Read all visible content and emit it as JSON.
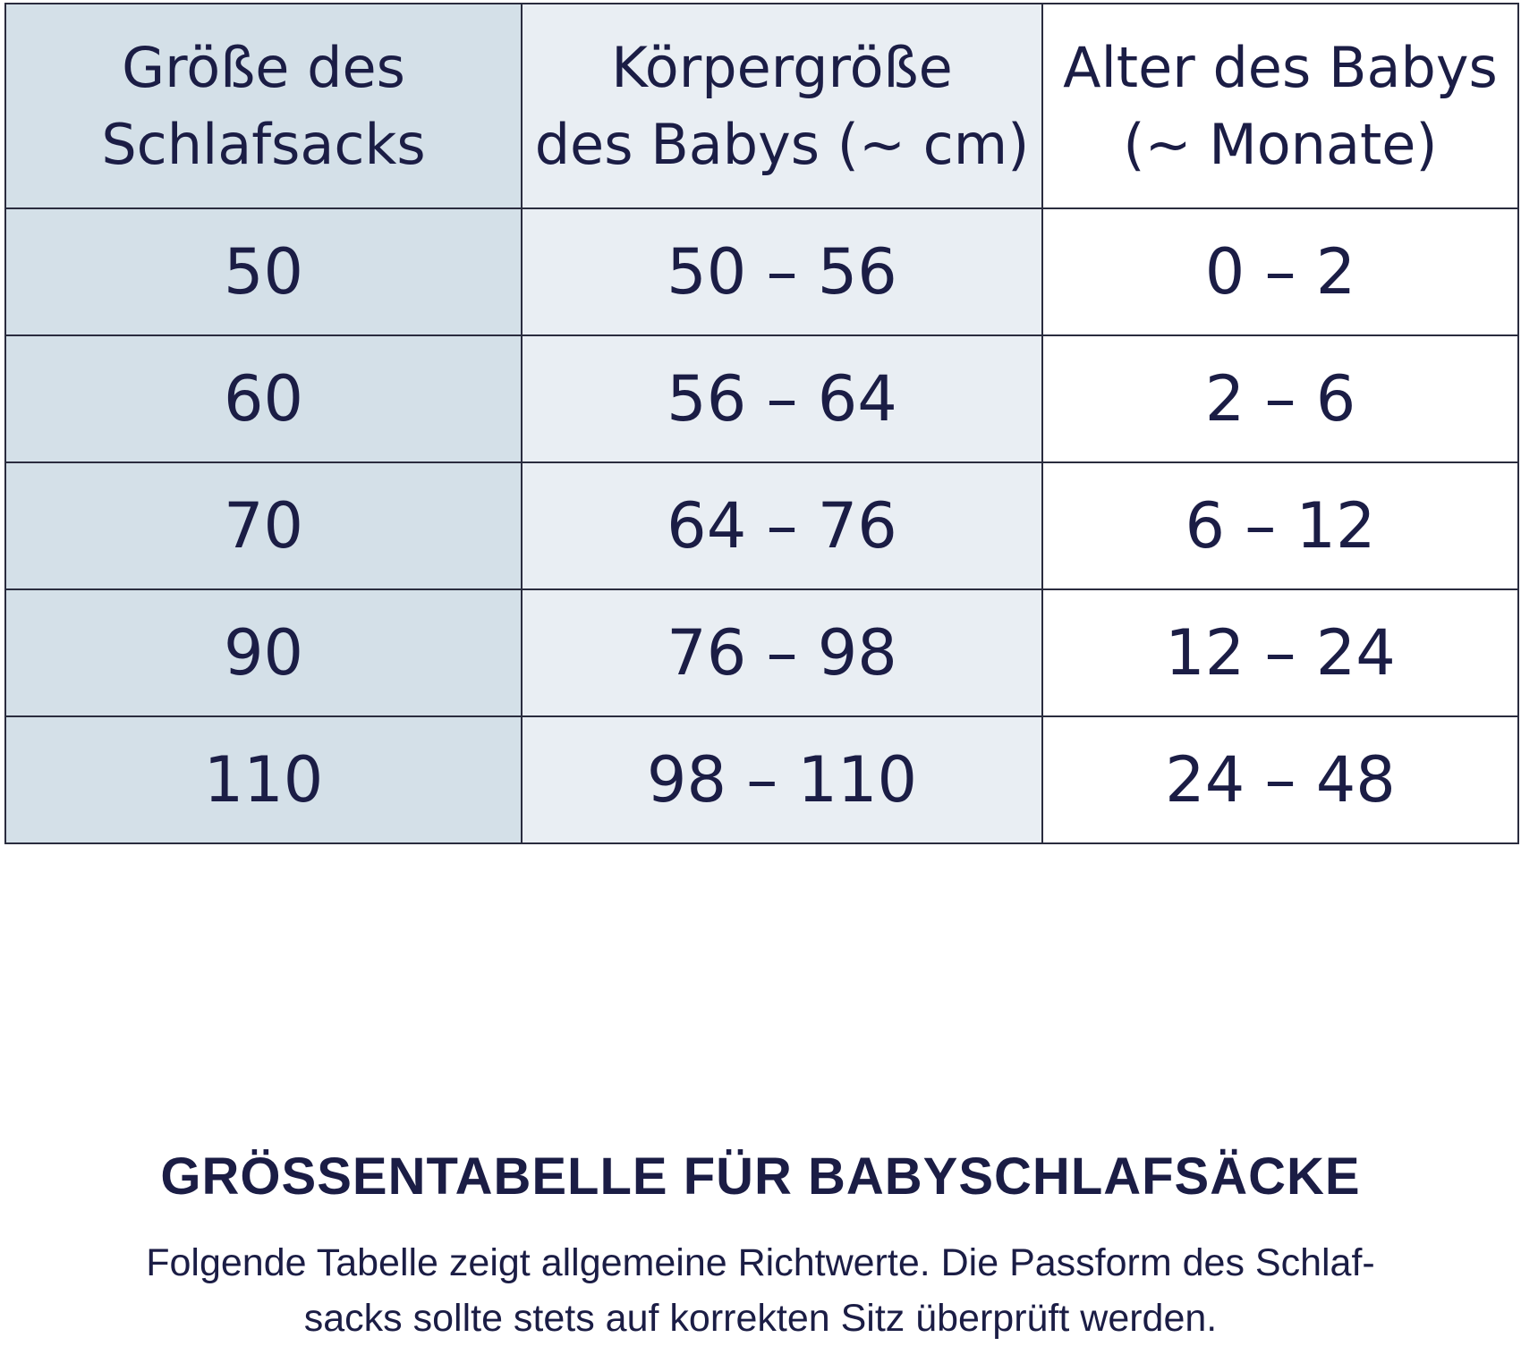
{
  "table": {
    "headers": [
      {
        "line1": "Größe des",
        "line2": "Schlafsacks"
      },
      {
        "line1": "Körpergröße",
        "line2": "des Babys (~ cm)"
      },
      {
        "line1": "Alter des Babys",
        "line2": "(~ Monate)"
      }
    ],
    "rows": [
      {
        "size": "50",
        "height": "50 – 56",
        "age": "0 – 2"
      },
      {
        "size": "60",
        "height": "56 – 64",
        "age": "2 – 6"
      },
      {
        "size": "70",
        "height": "64 – 76",
        "age": "6 – 12"
      },
      {
        "size": "90",
        "height": "76 – 98",
        "age": "12 – 24"
      },
      {
        "size": "110",
        "height": "98 – 110",
        "age": "24 – 48"
      }
    ]
  },
  "footer": {
    "title": "GRÖSSENTABELLE FÜR BABYSCHLAFSÄCKE",
    "text_line1": "Folgende Tabelle zeigt allgemeine Richtwerte. Die Passform des Schlaf-",
    "text_line2": "sacks sollte stets auf korrekten Sitz überprüft werden."
  },
  "colors": {
    "text": "#1b1d45",
    "column_1_bg": "#d4e0e8",
    "column_2_bg": "#e9eef3",
    "column_3_bg": "#ffffff",
    "border": "#2a2c3e"
  }
}
